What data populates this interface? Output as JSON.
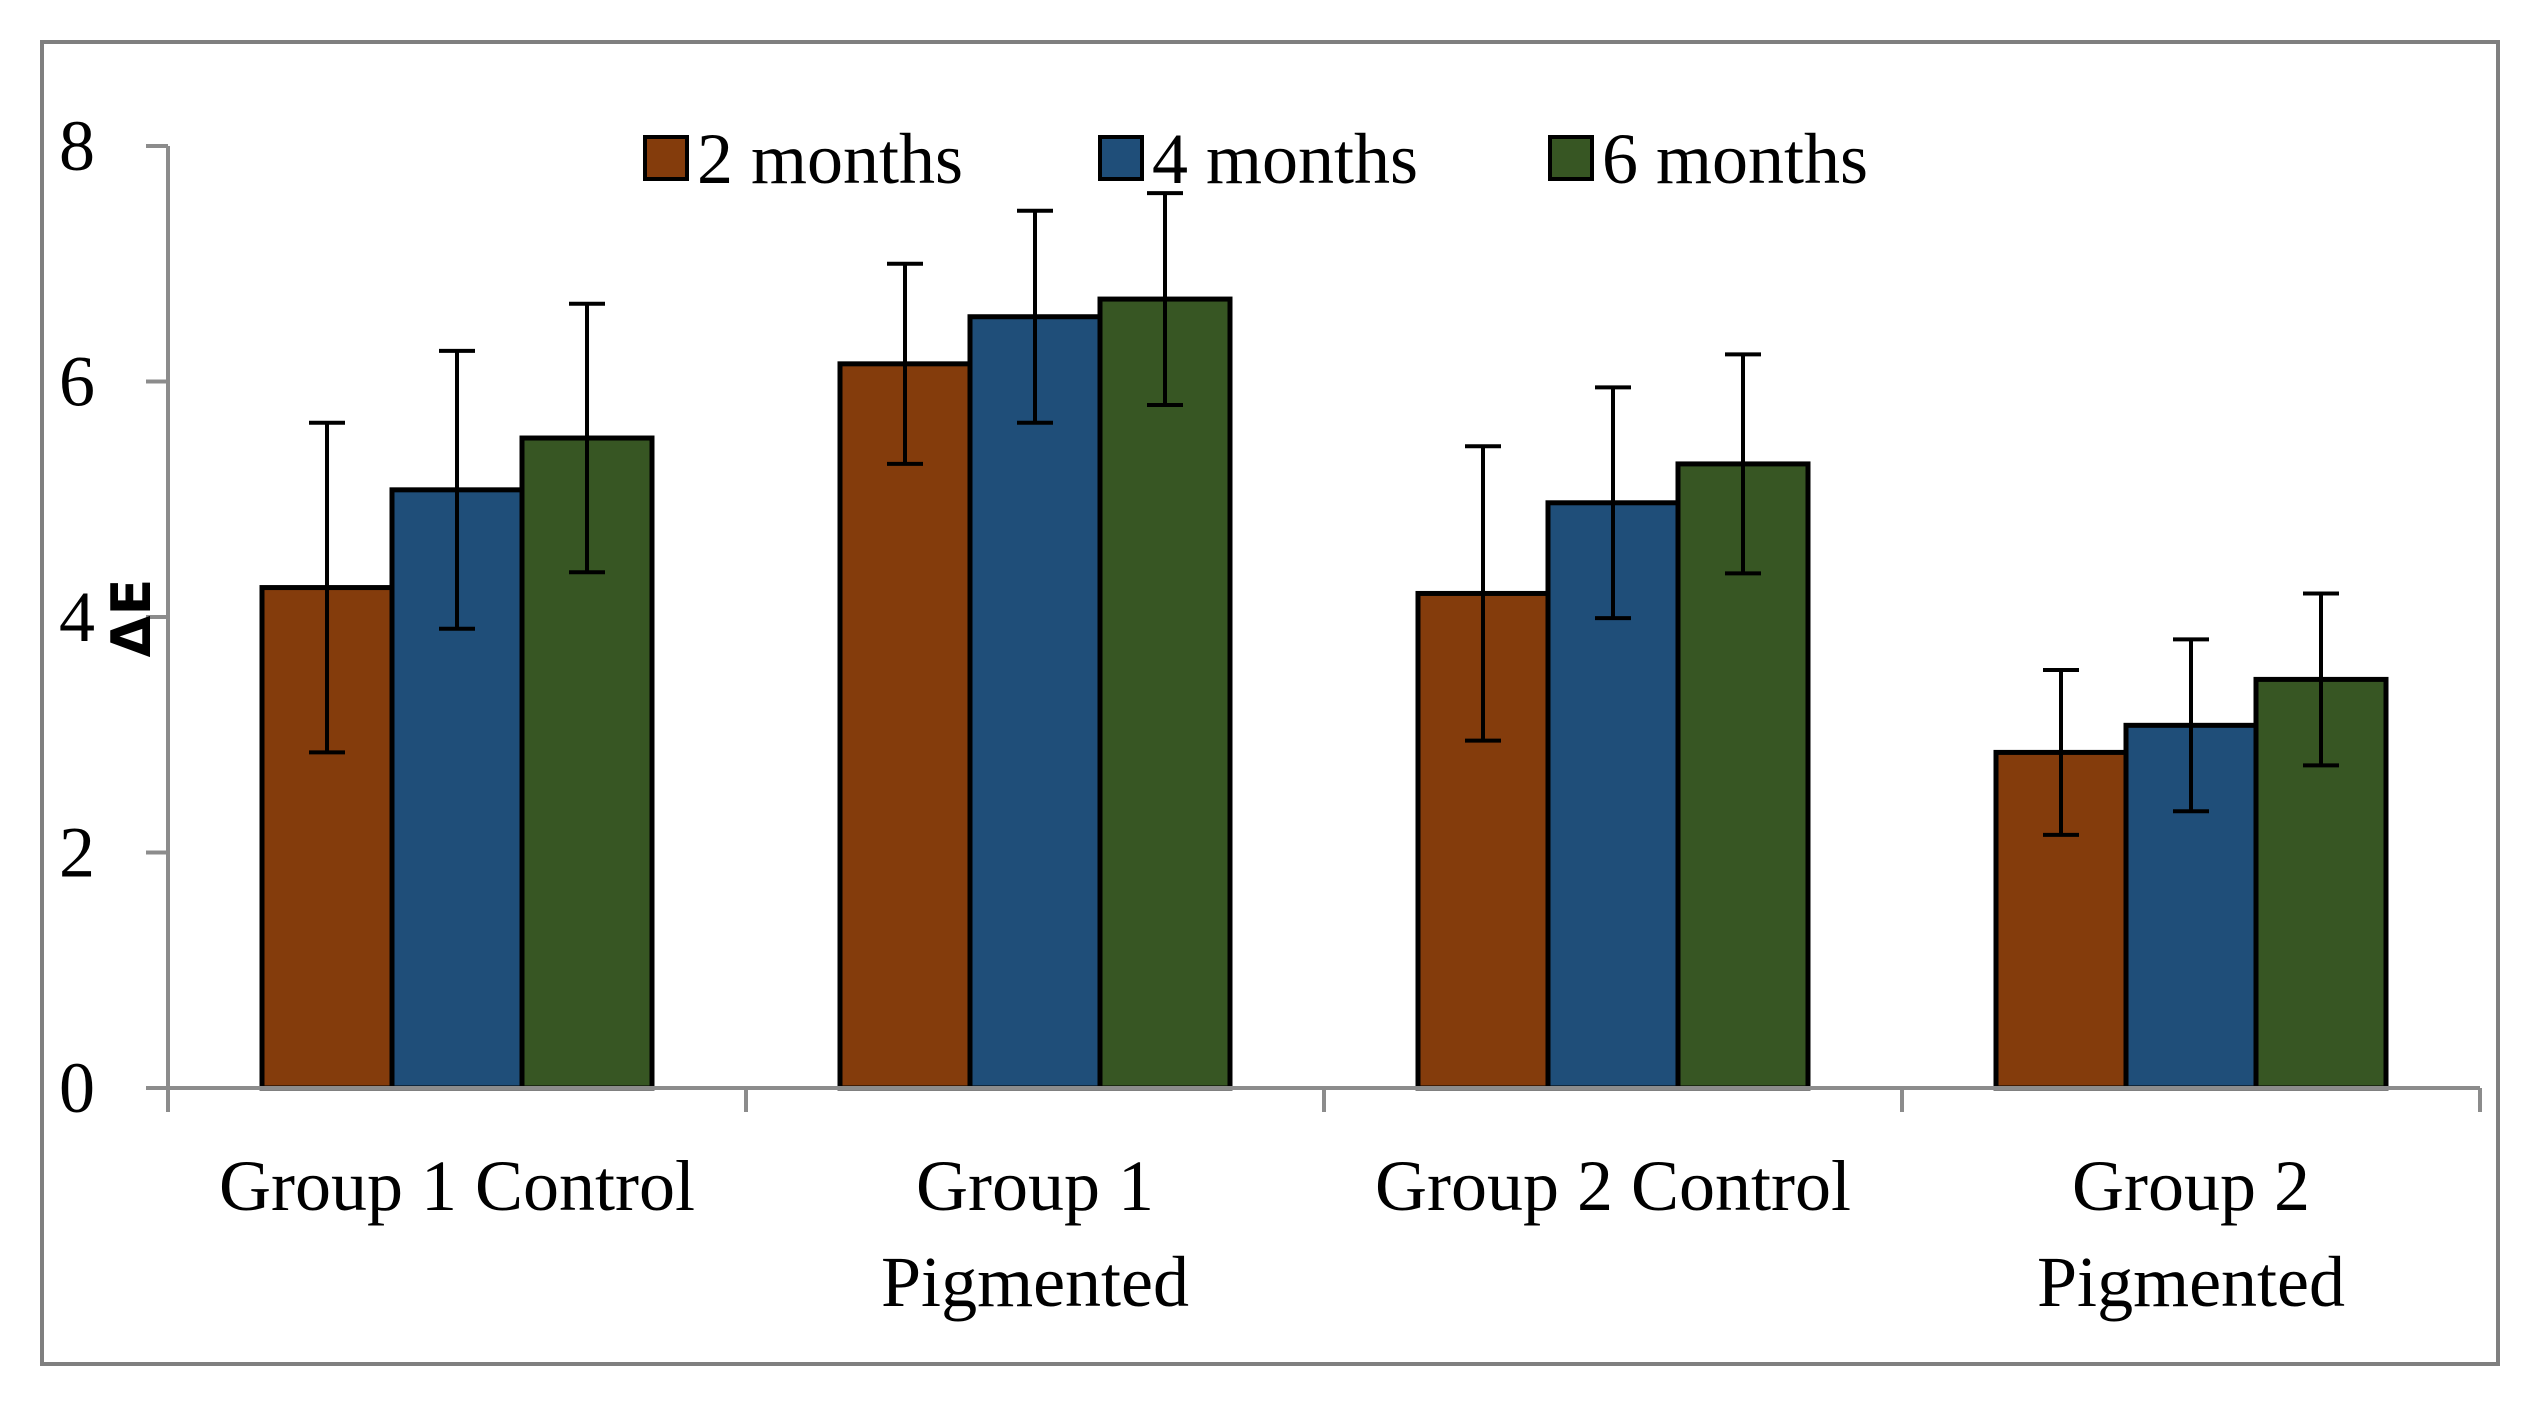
{
  "chart_data": {
    "type": "bar",
    "title": "",
    "xlabel": "",
    "ylabel": "ΔE",
    "ylim": [
      0,
      8
    ],
    "yticks": [
      0,
      2,
      4,
      6,
      8
    ],
    "grid": false,
    "legend_position": "top",
    "categories": [
      [
        "Group 1 Control"
      ],
      [
        "Group 1",
        "Pigmented"
      ],
      [
        "Group 2 Control"
      ],
      [
        "Group 2",
        "Pigmented"
      ]
    ],
    "series": [
      {
        "name": "2 months",
        "color": "#843C0C",
        "values": [
          4.25,
          6.15,
          4.2,
          2.85
        ],
        "errors": [
          1.4,
          0.85,
          1.25,
          0.7
        ]
      },
      {
        "name": "4 months",
        "color": "#1F4E79",
        "values": [
          5.08,
          6.55,
          4.97,
          3.08
        ],
        "errors": [
          1.18,
          0.9,
          0.98,
          0.73
        ]
      },
      {
        "name": "6 months",
        "color": "#375623",
        "values": [
          5.52,
          6.7,
          5.3,
          3.47
        ],
        "errors": [
          1.14,
          0.9,
          0.93,
          0.73
        ]
      }
    ]
  }
}
